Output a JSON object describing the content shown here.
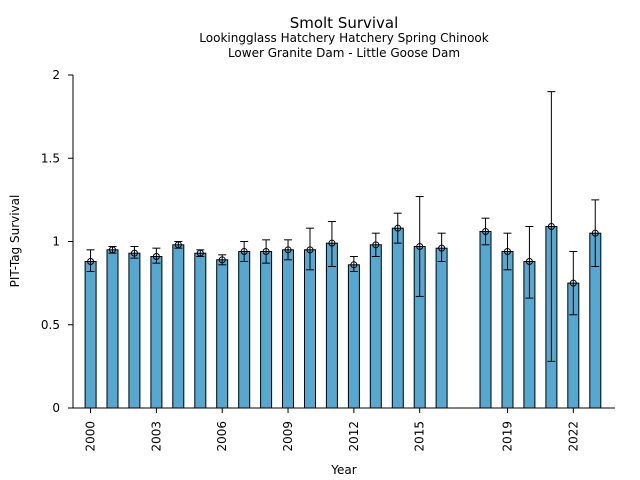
{
  "chart_data": {
    "type": "bar",
    "title": "Smolt Survival",
    "subtitle_lines": [
      "Lookingglass Hatchery Hatchery Spring Chinook",
      "Lower Granite Dam - Little Goose Dam"
    ],
    "xlabel": "Year",
    "ylabel": "PIT-Tag Survival",
    "ylim": [
      0,
      2
    ],
    "xlim": [
      1999.2,
      2023.9
    ],
    "yticks": [
      0,
      0.5,
      1,
      1.5,
      2
    ],
    "ytick_labels": [
      "0",
      "0.5",
      "1",
      "1.5",
      "2"
    ],
    "xticks": [
      2000,
      2003,
      2006,
      2009,
      2012,
      2015,
      2019,
      2022
    ],
    "xtick_labels": [
      "2000",
      "2003",
      "2006",
      "2009",
      "2012",
      "2015",
      "2019",
      "2022"
    ],
    "bar_color": "#56a8d0",
    "grid": false,
    "legend": "none",
    "points": [
      {
        "year": 2000,
        "value": 0.88,
        "lower": 0.82,
        "upper": 0.95
      },
      {
        "year": 2001,
        "value": 0.95,
        "lower": 0.93,
        "upper": 0.97
      },
      {
        "year": 2002,
        "value": 0.93,
        "lower": 0.9,
        "upper": 0.97
      },
      {
        "year": 2003,
        "value": 0.91,
        "lower": 0.87,
        "upper": 0.96
      },
      {
        "year": 2004,
        "value": 0.98,
        "lower": 0.96,
        "upper": 1.0
      },
      {
        "year": 2005,
        "value": 0.93,
        "lower": 0.91,
        "upper": 0.95
      },
      {
        "year": 2006,
        "value": 0.89,
        "lower": 0.86,
        "upper": 0.92
      },
      {
        "year": 2007,
        "value": 0.94,
        "lower": 0.88,
        "upper": 1.0
      },
      {
        "year": 2008,
        "value": 0.94,
        "lower": 0.87,
        "upper": 1.01
      },
      {
        "year": 2009,
        "value": 0.95,
        "lower": 0.89,
        "upper": 1.01
      },
      {
        "year": 2010,
        "value": 0.95,
        "lower": 0.83,
        "upper": 1.08
      },
      {
        "year": 2011,
        "value": 0.99,
        "lower": 0.85,
        "upper": 1.12
      },
      {
        "year": 2012,
        "value": 0.86,
        "lower": 0.82,
        "upper": 0.91
      },
      {
        "year": 2013,
        "value": 0.98,
        "lower": 0.91,
        "upper": 1.05
      },
      {
        "year": 2014,
        "value": 1.08,
        "lower": 0.99,
        "upper": 1.17
      },
      {
        "year": 2015,
        "value": 0.97,
        "lower": 0.67,
        "upper": 1.27
      },
      {
        "year": 2016,
        "value": 0.96,
        "lower": 0.88,
        "upper": 1.05
      },
      {
        "year": 2018,
        "value": 1.06,
        "lower": 0.98,
        "upper": 1.14
      },
      {
        "year": 2019,
        "value": 0.94,
        "lower": 0.83,
        "upper": 1.05
      },
      {
        "year": 2020,
        "value": 0.88,
        "lower": 0.66,
        "upper": 1.09
      },
      {
        "year": 2021,
        "value": 1.09,
        "lower": 0.28,
        "upper": 1.9
      },
      {
        "year": 2022,
        "value": 0.75,
        "lower": 0.56,
        "upper": 0.94
      },
      {
        "year": 2023,
        "value": 1.05,
        "lower": 0.85,
        "upper": 1.25
      }
    ]
  }
}
